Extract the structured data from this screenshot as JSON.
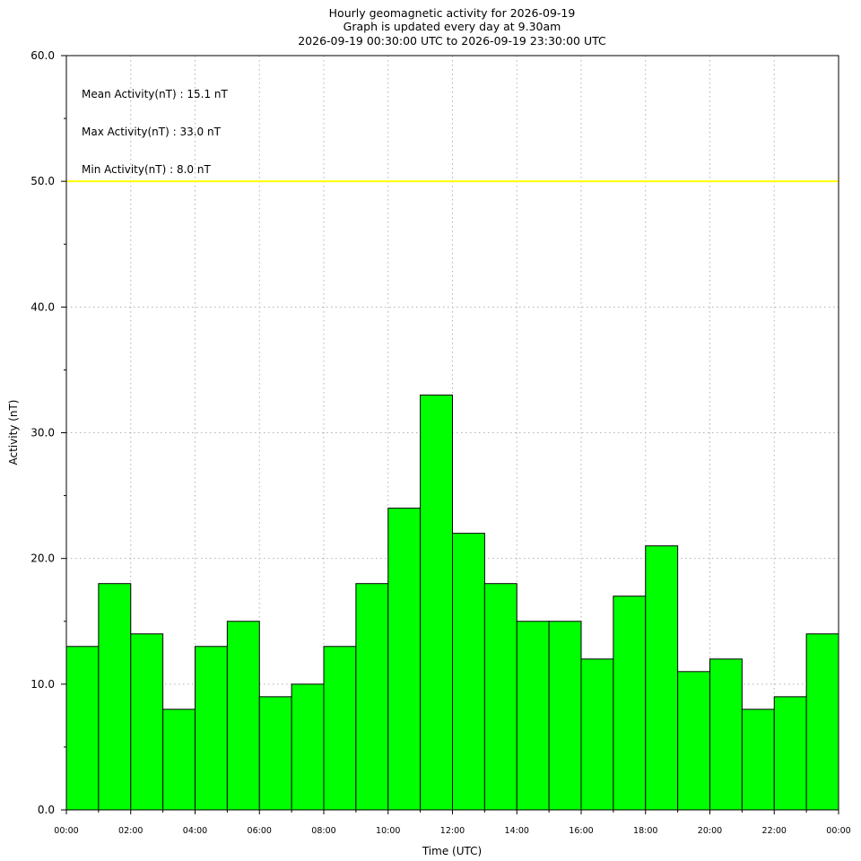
{
  "chart_data": {
    "type": "bar",
    "title": [
      "Hourly geomagnetic activity for 2026-09-19",
      "Graph is updated every day at 9.30am",
      "2026-09-19 00:30:00 UTC to 2026-09-19 23:30:00 UTC"
    ],
    "xlabel": "Time (UTC)",
    "ylabel": "Activity (nT)",
    "ylim": [
      0,
      60
    ],
    "yticks": [
      0,
      10,
      20,
      30,
      40,
      50,
      60
    ],
    "ytick_labels": [
      "0.0",
      "10.0",
      "20.0",
      "30.0",
      "40.0",
      "50.0",
      "60.0"
    ],
    "xlim_hours": [
      0,
      24
    ],
    "xtick_labels": [
      "00:00",
      "02:00",
      "04:00",
      "06:00",
      "08:00",
      "10:00",
      "12:00",
      "14:00",
      "16:00",
      "18:00",
      "20:00",
      "22:00",
      "00:00"
    ],
    "grid": true,
    "bar_color": "#00ff00",
    "threshold": {
      "value": 50,
      "color": "#ffff00"
    },
    "annotations": [
      "Mean Activity(nT) : 15.1 nT",
      "Max Activity(nT) : 33.0 nT",
      "Min Activity(nT) : 8.0 nT"
    ],
    "x": [
      "00:30",
      "01:30",
      "02:30",
      "03:30",
      "04:30",
      "05:30",
      "06:30",
      "07:30",
      "08:30",
      "09:30",
      "10:30",
      "11:30",
      "12:30",
      "13:30",
      "14:30",
      "15:30",
      "16:30",
      "17:30",
      "18:30",
      "19:30",
      "20:30",
      "21:30",
      "22:30",
      "23:30"
    ],
    "values": [
      13,
      18,
      14,
      8,
      13,
      15,
      9,
      10,
      13,
      18,
      24,
      33,
      22,
      18,
      15,
      15,
      12,
      17,
      21,
      11,
      12,
      8,
      9,
      14
    ]
  }
}
